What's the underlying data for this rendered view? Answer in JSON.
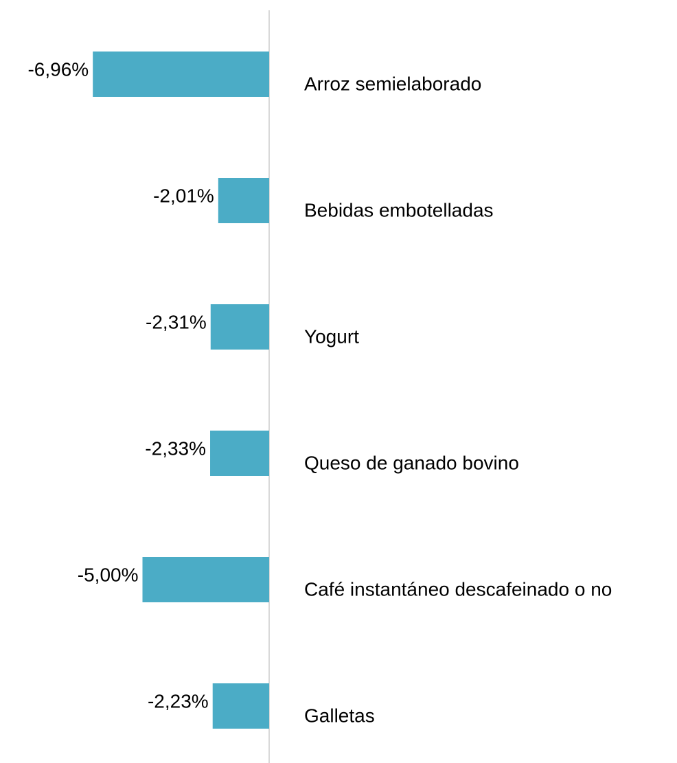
{
  "chart_data": {
    "type": "barh",
    "categories": [
      "Arroz semielaborado",
      "Bebidas embotelladas",
      "Yogurt",
      "Queso de ganado bovino",
      "Café instantáneo descafeinado o no",
      "Galletas"
    ],
    "values": [
      -6.96,
      -2.01,
      -2.31,
      -2.33,
      -5.0,
      -2.23
    ],
    "value_labels": [
      "-6,96%",
      "-2,01%",
      "-2,31%",
      "-2,33%",
      "-5,00%",
      "-2,23%"
    ],
    "color": "#4bacc6",
    "xlim": [
      -8,
      0
    ]
  }
}
